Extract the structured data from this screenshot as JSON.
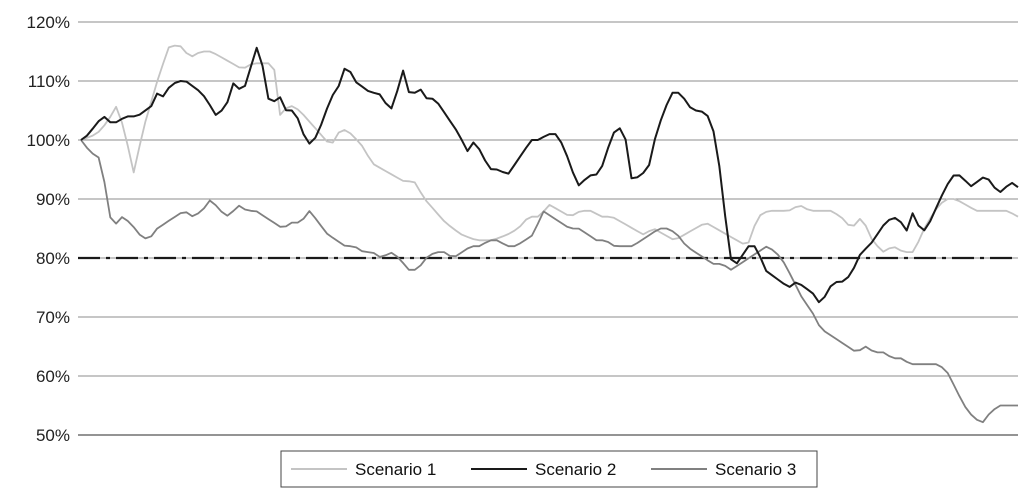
{
  "chart_data": {
    "type": "line",
    "title": "",
    "xlabel": "",
    "ylabel": "",
    "ylim": [
      50,
      120
    ],
    "yticks": [
      50,
      60,
      70,
      80,
      90,
      100,
      110,
      120
    ],
    "ytick_labels": [
      "50%",
      "60%",
      "70%",
      "80%",
      "90%",
      "100%",
      "110%",
      "120%"
    ],
    "grid": "horizontal",
    "legend_position": "bottom-center",
    "x_count": 161,
    "threshold": {
      "value": 80,
      "style": "dash-dot",
      "color": "#1a1a1a"
    },
    "series": [
      {
        "name": "Scenario 1",
        "color": "#c4c4c4",
        "anchors": [
          [
            0,
            100
          ],
          [
            3,
            101
          ],
          [
            5,
            103
          ],
          [
            7,
            106
          ],
          [
            9,
            99
          ],
          [
            10,
            94
          ],
          [
            12,
            102
          ],
          [
            15,
            111
          ],
          [
            17,
            116
          ],
          [
            19,
            116
          ],
          [
            21,
            114
          ],
          [
            23,
            115
          ],
          [
            25,
            115
          ],
          [
            27,
            114
          ],
          [
            29,
            113
          ],
          [
            31,
            112
          ],
          [
            33,
            113
          ],
          [
            35,
            113
          ],
          [
            37,
            113
          ],
          [
            38,
            104
          ],
          [
            40,
            106
          ],
          [
            42,
            105
          ],
          [
            44,
            103
          ],
          [
            46,
            101
          ],
          [
            48,
            99
          ],
          [
            50,
            102
          ],
          [
            52,
            101
          ],
          [
            54,
            99
          ],
          [
            56,
            96
          ],
          [
            58,
            95
          ],
          [
            60,
            94
          ],
          [
            62,
            93
          ],
          [
            64,
            93
          ],
          [
            66,
            90
          ],
          [
            68,
            88
          ],
          [
            70,
            86
          ],
          [
            73,
            84
          ],
          [
            76,
            83
          ],
          [
            79,
            83
          ],
          [
            82,
            84
          ],
          [
            84,
            85
          ],
          [
            86,
            87
          ],
          [
            88,
            87
          ],
          [
            90,
            89
          ],
          [
            92,
            88
          ],
          [
            94,
            87
          ],
          [
            96,
            88
          ],
          [
            98,
            88
          ],
          [
            100,
            87
          ],
          [
            102,
            87
          ],
          [
            104,
            86
          ],
          [
            106,
            85
          ],
          [
            108,
            84
          ],
          [
            110,
            85
          ],
          [
            112,
            84
          ],
          [
            114,
            83
          ],
          [
            116,
            84
          ],
          [
            118,
            85
          ],
          [
            120,
            86
          ],
          [
            122,
            85
          ],
          [
            124,
            84
          ],
          [
            126,
            83
          ],
          [
            128,
            82
          ],
          [
            130,
            87
          ],
          [
            132,
            88
          ],
          [
            134,
            88
          ],
          [
            136,
            88
          ],
          [
            138,
            89
          ],
          [
            140,
            88
          ],
          [
            142,
            88
          ],
          [
            144,
            88
          ],
          [
            146,
            87
          ],
          [
            148,
            85
          ],
          [
            150,
            87
          ],
          [
            152,
            83
          ],
          [
            154,
            81
          ],
          [
            156,
            82
          ],
          [
            158,
            81
          ],
          [
            160,
            81
          ],
          [
            162,
            85
          ],
          [
            164,
            88
          ],
          [
            166,
            90
          ],
          [
            168,
            90
          ],
          [
            170,
            89
          ],
          [
            172,
            88
          ],
          [
            174,
            88
          ],
          [
            176,
            88
          ],
          [
            178,
            88
          ],
          [
            180,
            87
          ]
        ]
      },
      {
        "name": "Scenario 2",
        "color": "#1a1a1a",
        "anchors": [
          [
            0,
            100
          ],
          [
            2,
            101
          ],
          [
            4,
            103
          ],
          [
            6,
            104
          ],
          [
            7,
            103
          ],
          [
            9,
            103
          ],
          [
            11,
            104
          ],
          [
            14,
            104
          ],
          [
            16,
            105
          ],
          [
            18,
            106
          ],
          [
            19,
            108
          ],
          [
            20,
            107
          ],
          [
            22,
            109
          ],
          [
            24,
            110
          ],
          [
            26,
            110
          ],
          [
            28,
            109
          ],
          [
            30,
            108
          ],
          [
            32,
            106
          ],
          [
            33,
            104
          ],
          [
            35,
            105
          ],
          [
            37,
            107
          ],
          [
            38,
            110
          ],
          [
            40,
            108
          ],
          [
            42,
            111
          ],
          [
            43,
            117
          ],
          [
            45,
            113
          ],
          [
            46,
            110
          ],
          [
            47,
            105
          ],
          [
            49,
            108
          ],
          [
            51,
            105
          ],
          [
            53,
            105
          ],
          [
            55,
            102
          ],
          [
            56,
            99
          ],
          [
            58,
            100
          ],
          [
            60,
            103
          ],
          [
            62,
            107
          ],
          [
            64,
            109
          ],
          [
            66,
            113
          ],
          [
            68,
            110
          ],
          [
            70,
            109
          ],
          [
            72,
            108
          ],
          [
            74,
            108
          ],
          [
            76,
            106
          ],
          [
            77,
            105
          ],
          [
            79,
            109
          ],
          [
            80,
            112
          ],
          [
            82,
            107
          ],
          [
            84,
            109
          ],
          [
            86,
            107
          ],
          [
            88,
            107
          ],
          [
            90,
            105
          ],
          [
            92,
            103
          ],
          [
            94,
            101
          ],
          [
            96,
            98
          ],
          [
            98,
            100
          ],
          [
            100,
            97
          ],
          [
            102,
            95
          ],
          [
            104,
            95
          ],
          [
            106,
            94
          ],
          [
            108,
            96
          ],
          [
            110,
            98
          ],
          [
            112,
            100
          ],
          [
            114,
            100
          ],
          [
            116,
            101
          ],
          [
            118,
            101
          ],
          [
            120,
            99
          ],
          [
            122,
            95
          ],
          [
            124,
            92
          ],
          [
            126,
            94
          ],
          [
            128,
            94
          ],
          [
            130,
            96
          ],
          [
            132,
            101
          ],
          [
            134,
            102
          ],
          [
            135,
            102
          ],
          [
            137,
            93
          ],
          [
            139,
            94
          ],
          [
            141,
            95
          ],
          [
            143,
            101
          ],
          [
            145,
            105
          ],
          [
            147,
            108
          ],
          [
            149,
            108
          ],
          [
            151,
            106
          ],
          [
            152,
            105
          ],
          [
            154,
            105
          ],
          [
            156,
            104
          ],
          [
            158,
            100
          ],
          [
            160,
            88
          ],
          [
            162,
            78
          ],
          [
            164,
            80
          ],
          [
            166,
            82
          ],
          [
            168,
            82
          ],
          [
            170,
            78
          ],
          [
            172,
            77
          ],
          [
            174,
            76
          ],
          [
            176,
            75
          ],
          [
            178,
            76
          ],
          [
            180,
            75
          ],
          [
            182,
            74
          ],
          [
            184,
            72
          ],
          [
            186,
            75
          ],
          [
            188,
            76
          ],
          [
            190,
            76
          ],
          [
            192,
            78
          ],
          [
            194,
            81
          ],
          [
            196,
            82
          ],
          [
            198,
            84
          ],
          [
            200,
            86
          ],
          [
            202,
            87
          ],
          [
            204,
            86
          ],
          [
            205,
            84
          ],
          [
            207,
            88
          ],
          [
            209,
            84
          ],
          [
            211,
            86
          ],
          [
            213,
            89
          ],
          [
            215,
            92
          ],
          [
            217,
            94
          ],
          [
            219,
            94
          ],
          [
            221,
            92
          ],
          [
            223,
            93
          ],
          [
            225,
            94
          ],
          [
            227,
            92
          ],
          [
            229,
            91
          ],
          [
            231,
            93
          ],
          [
            233,
            92
          ]
        ]
      },
      {
        "name": "Scenario 3",
        "color": "#808080",
        "anchors": [
          [
            0,
            100
          ],
          [
            2,
            98
          ],
          [
            4,
            97
          ],
          [
            5,
            94
          ],
          [
            6,
            89
          ],
          [
            7,
            85
          ],
          [
            9,
            87
          ],
          [
            11,
            86
          ],
          [
            13,
            84
          ],
          [
            15,
            83
          ],
          [
            17,
            85
          ],
          [
            19,
            86
          ],
          [
            21,
            87
          ],
          [
            23,
            88
          ],
          [
            25,
            87
          ],
          [
            27,
            88
          ],
          [
            29,
            90
          ],
          [
            31,
            88
          ],
          [
            33,
            87
          ],
          [
            35,
            89
          ],
          [
            37,
            88
          ],
          [
            39,
            88
          ],
          [
            41,
            87
          ],
          [
            43,
            86
          ],
          [
            45,
            85
          ],
          [
            47,
            86
          ],
          [
            49,
            86
          ],
          [
            51,
            88
          ],
          [
            53,
            86
          ],
          [
            55,
            84
          ],
          [
            57,
            83
          ],
          [
            59,
            82
          ],
          [
            61,
            82
          ],
          [
            63,
            81
          ],
          [
            65,
            81
          ],
          [
            67,
            80
          ],
          [
            69,
            81
          ],
          [
            71,
            80
          ],
          [
            73,
            78
          ],
          [
            75,
            78
          ],
          [
            77,
            80
          ],
          [
            79,
            81
          ],
          [
            81,
            81
          ],
          [
            83,
            80
          ],
          [
            85,
            81
          ],
          [
            87,
            82
          ],
          [
            89,
            82
          ],
          [
            91,
            83
          ],
          [
            93,
            83
          ],
          [
            95,
            82
          ],
          [
            97,
            82
          ],
          [
            99,
            83
          ],
          [
            101,
            84
          ],
          [
            103,
            88
          ],
          [
            105,
            87
          ],
          [
            107,
            86
          ],
          [
            109,
            85
          ],
          [
            111,
            85
          ],
          [
            113,
            84
          ],
          [
            115,
            83
          ],
          [
            117,
            83
          ],
          [
            119,
            82
          ],
          [
            121,
            82
          ],
          [
            123,
            82
          ],
          [
            125,
            83
          ],
          [
            127,
            84
          ],
          [
            129,
            85
          ],
          [
            131,
            85
          ],
          [
            133,
            84
          ],
          [
            135,
            82
          ],
          [
            137,
            81
          ],
          [
            139,
            80
          ],
          [
            141,
            79
          ],
          [
            143,
            79
          ],
          [
            145,
            78
          ],
          [
            147,
            79
          ],
          [
            149,
            80
          ],
          [
            151,
            81
          ],
          [
            153,
            82
          ],
          [
            155,
            81
          ],
          [
            157,
            79
          ],
          [
            159,
            76
          ],
          [
            161,
            73
          ],
          [
            163,
            71
          ],
          [
            165,
            68
          ],
          [
            167,
            67
          ],
          [
            169,
            66
          ],
          [
            171,
            65
          ],
          [
            173,
            64
          ],
          [
            175,
            65
          ],
          [
            177,
            64
          ],
          [
            179,
            64
          ],
          [
            181,
            63
          ],
          [
            183,
            63
          ],
          [
            185,
            62
          ],
          [
            187,
            62
          ],
          [
            189,
            62
          ],
          [
            191,
            62
          ],
          [
            193,
            61
          ],
          [
            195,
            58
          ],
          [
            197,
            55
          ],
          [
            199,
            53
          ],
          [
            201,
            52
          ],
          [
            203,
            54
          ],
          [
            205,
            55
          ],
          [
            207,
            55
          ],
          [
            209,
            55
          ]
        ]
      }
    ]
  }
}
